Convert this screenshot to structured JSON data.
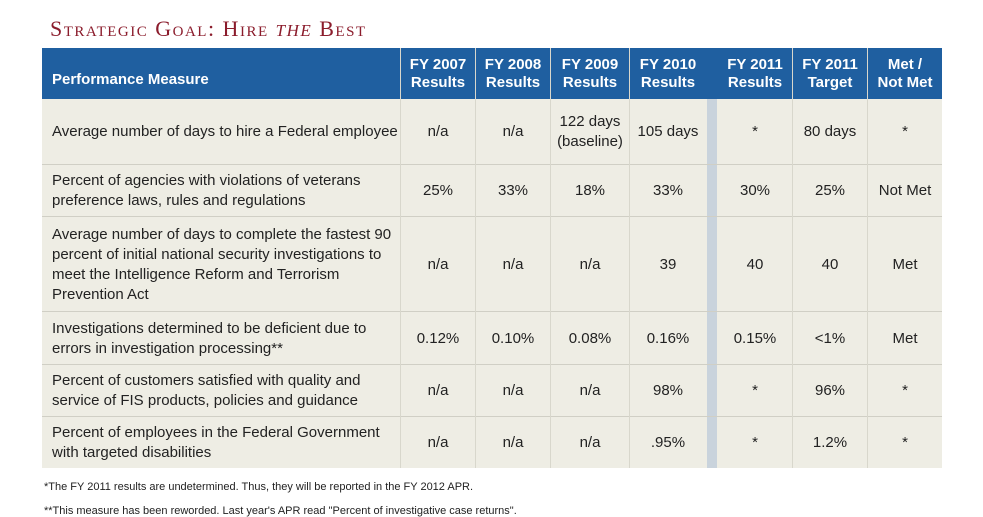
{
  "title": {
    "main": "Strategic Goal: Hire ",
    "italic": "the",
    "tail": " Best"
  },
  "header": {
    "measure": "Performance Measure",
    "columns": [
      {
        "line1": "FY 2007",
        "line2": "Results"
      },
      {
        "line1": "FY 2008",
        "line2": "Results"
      },
      {
        "line1": "FY 2009",
        "line2": "Results"
      },
      {
        "line1": "FY 2010",
        "line2": "Results"
      },
      {
        "line1": "FY 2011",
        "line2": "Results"
      },
      {
        "line1": "FY 2011",
        "line2": "Target"
      },
      {
        "line1": "Met /",
        "line2": "Not Met"
      }
    ]
  },
  "rows": [
    {
      "measure": "Average number of days to hire a Federal employee",
      "values": [
        "n/a",
        "n/a",
        "122 days (baseline)",
        "105 days",
        "*",
        "80 days",
        "*"
      ]
    },
    {
      "measure": "Percent of agencies with violations of veterans preference laws, rules and regulations",
      "values": [
        "25%",
        "33%",
        "18%",
        "33%",
        "30%",
        "25%",
        "Not Met"
      ]
    },
    {
      "measure": "Average number of days to complete the fastest 90 percent of initial national security investigations to meet the Intelligence Reform and Terrorism Prevention Act",
      "values": [
        "n/a",
        "n/a",
        "n/a",
        "39",
        "40",
        "40",
        "Met"
      ]
    },
    {
      "measure": "Investigations determined to be deficient due to errors in investigation processing**",
      "values": [
        "0.12%",
        "0.10%",
        "0.08%",
        "0.16%",
        "0.15%",
        "<1%",
        "Met"
      ]
    },
    {
      "measure": "Percent of customers satisfied with quality and service of FIS products, policies and guidance",
      "values": [
        "n/a",
        "n/a",
        "n/a",
        "98%",
        "*",
        "96%",
        "*"
      ]
    },
    {
      "measure": "Percent of employees in the Federal Government with targeted disabilities",
      "values": [
        "n/a",
        "n/a",
        "n/a",
        ".95%",
        "*",
        "1.2%",
        "*"
      ]
    }
  ],
  "footnotes": [
    "*The FY 2011 results are undetermined. Thus, they will be reported in the FY 2012 APR.",
    "**This measure has been reworded. Last year's APR read \"Percent of investigative case returns\"."
  ]
}
